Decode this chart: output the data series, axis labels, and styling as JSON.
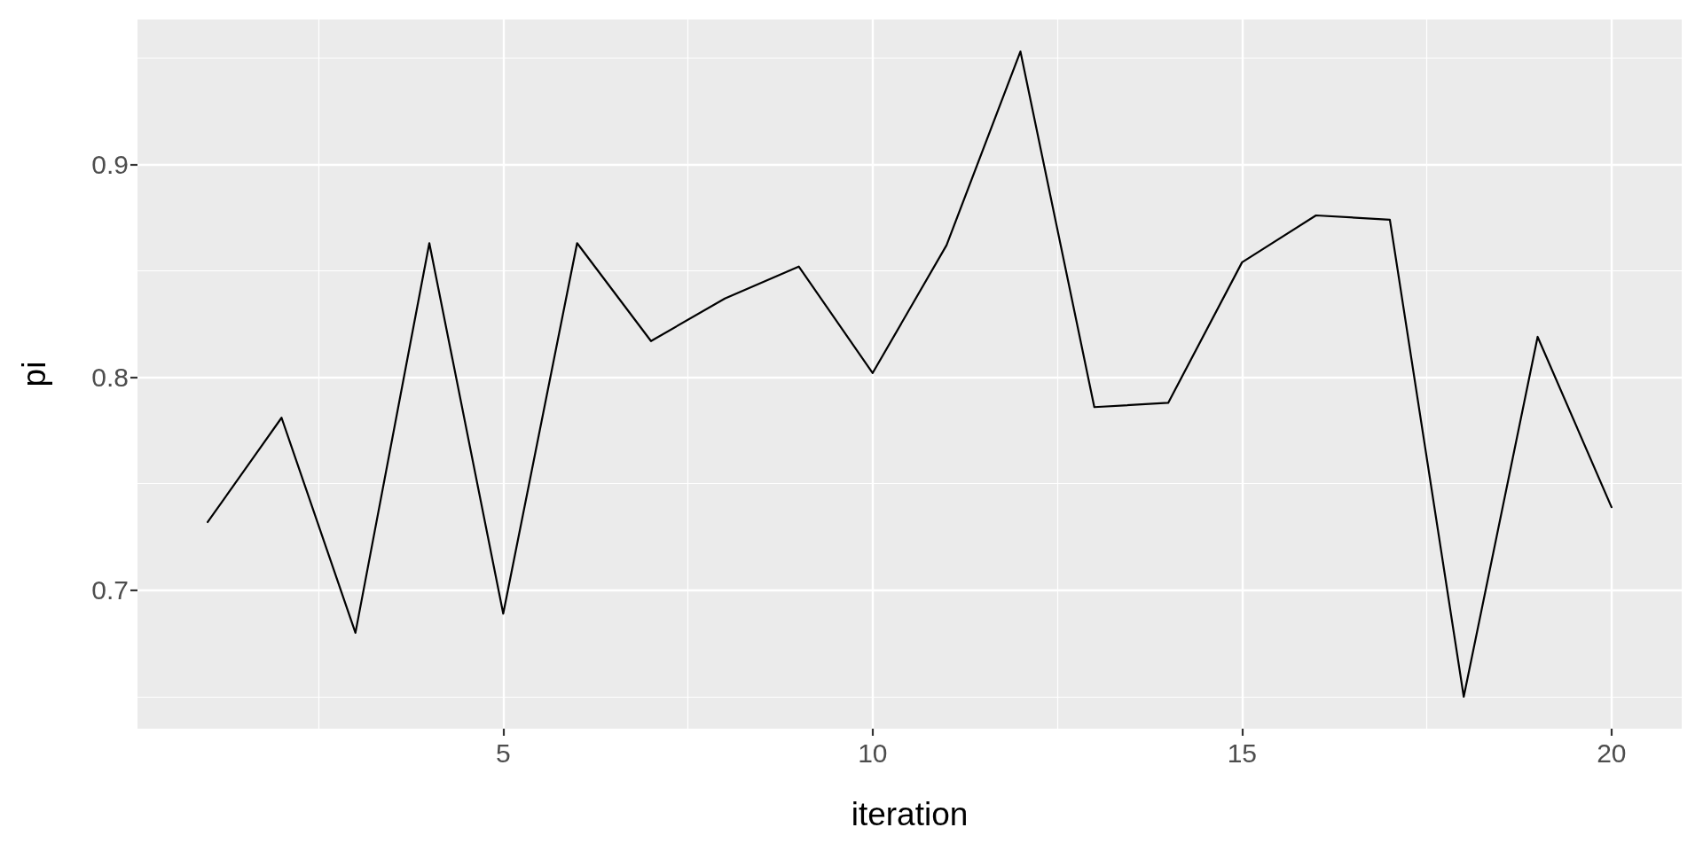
{
  "chart_data": {
    "type": "line",
    "xlabel": "iteration",
    "ylabel": "pi",
    "x": [
      1,
      2,
      3,
      4,
      5,
      6,
      7,
      8,
      9,
      10,
      11,
      12,
      13,
      14,
      15,
      16,
      17,
      18,
      19,
      20
    ],
    "values": [
      0.732,
      0.781,
      0.68,
      0.863,
      0.689,
      0.863,
      0.817,
      0.837,
      0.852,
      0.802,
      0.862,
      0.953,
      0.786,
      0.788,
      0.854,
      0.876,
      0.874,
      0.65,
      0.819,
      0.739
    ],
    "color": "#000000",
    "xlim": [
      0.05,
      20.95
    ],
    "xticks": [
      5,
      10,
      15,
      20
    ],
    "ylim": [
      0.635,
      0.968
    ],
    "yticks": [
      0.7,
      0.8,
      0.9
    ],
    "grid": true,
    "marker": "none",
    "line_style": "solid"
  }
}
